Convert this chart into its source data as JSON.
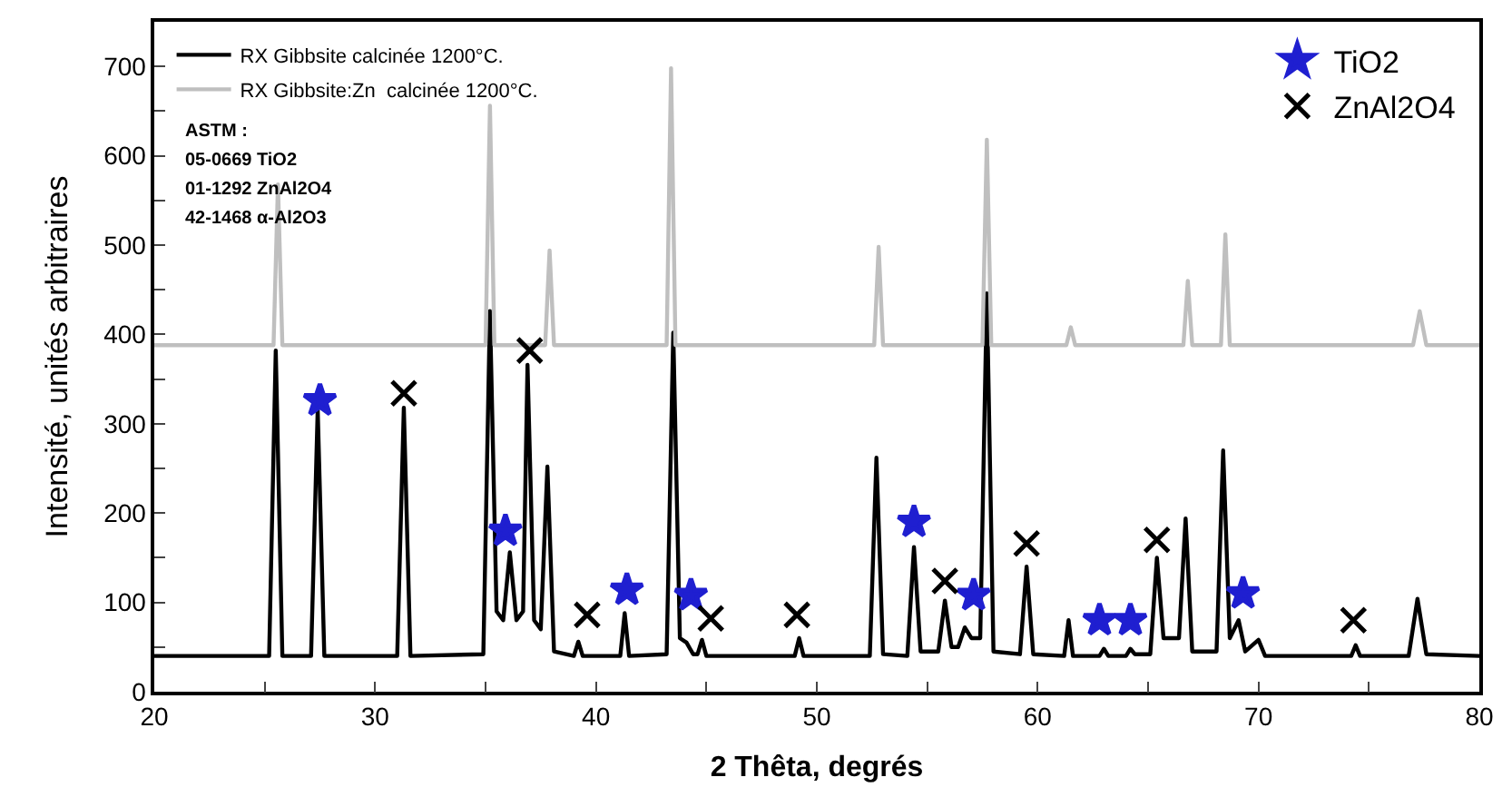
{
  "chart_data": {
    "type": "line",
    "xlabel": "2 Thêta, degrés",
    "ylabel": "Intensité, unités arbitraires",
    "xlim": [
      20,
      80
    ],
    "ylim": [
      0,
      750
    ],
    "xticks": [
      20,
      {
        "value": 25,
        "label": null
      },
      30,
      {
        "value": 35,
        "label": null
      },
      40,
      {
        "value": 45,
        "label": null
      },
      50,
      {
        "value": 55,
        "label": null
      },
      60,
      {
        "value": 65,
        "label": null
      },
      70,
      {
        "value": 75,
        "label": null
      },
      80
    ],
    "yticks": [
      0,
      {
        "value": 50,
        "label": null
      },
      100,
      {
        "value": 150,
        "label": null
      },
      200,
      {
        "value": 250,
        "label": null
      },
      300,
      {
        "value": 350,
        "label": null
      },
      400,
      {
        "value": 450,
        "label": null
      },
      500,
      {
        "value": 550,
        "label": null
      },
      600,
      {
        "value": 650,
        "label": null
      },
      700
    ],
    "legend": "top left",
    "marker": "none",
    "line_style": "solid",
    "series": [
      {
        "name": "RX Gibbsite calcinée 1200°C.",
        "color": "#000000",
        "x": [
          20,
          25.2,
          25.5,
          25.8,
          27.1,
          27.4,
          27.7,
          31.0,
          31.3,
          31.6,
          34.9,
          35.2,
          35.5,
          35.8,
          36.1,
          36.4,
          36.7,
          36.9,
          37.2,
          37.5,
          37.8,
          38.1,
          39.0,
          39.2,
          39.4,
          41.1,
          41.3,
          41.5,
          43.2,
          43.5,
          43.8,
          44.1,
          44.4,
          44.6,
          44.8,
          45.0,
          49.0,
          49.2,
          49.4,
          52.4,
          52.7,
          53.0,
          54.1,
          54.4,
          54.7,
          55.5,
          55.8,
          56.1,
          56.4,
          56.7,
          57.0,
          57.4,
          57.7,
          58.0,
          59.2,
          59.5,
          59.8,
          61.2,
          61.4,
          61.6,
          62.8,
          63.0,
          63.2,
          64.0,
          64.2,
          64.4,
          65.1,
          65.4,
          65.7,
          66.4,
          66.7,
          67.0,
          68.1,
          68.4,
          68.7,
          69.1,
          69.4,
          70.0,
          70.3,
          74.2,
          74.4,
          74.6,
          76.8,
          77.2,
          77.6,
          80
        ],
        "values": [
          40,
          40,
          382,
          40,
          40,
          316,
          40,
          40,
          318,
          40,
          42,
          426,
          90,
          80,
          156,
          80,
          90,
          366,
          80,
          70,
          252,
          45,
          40,
          56,
          40,
          40,
          88,
          40,
          42,
          402,
          60,
          55,
          42,
          42,
          58,
          40,
          40,
          60,
          40,
          40,
          262,
          42,
          40,
          162,
          45,
          45,
          102,
          50,
          50,
          72,
          60,
          60,
          446,
          45,
          42,
          140,
          42,
          40,
          80,
          40,
          40,
          48,
          40,
          40,
          48,
          42,
          42,
          150,
          60,
          60,
          194,
          45,
          45,
          270,
          60,
          80,
          45,
          58,
          40,
          40,
          52,
          40,
          40,
          104,
          42,
          40
        ]
      },
      {
        "name": "RX Gibbsite:Zn  calcinée 1200°C.",
        "color": "#bfbfbf",
        "x": [
          20,
          25.4,
          25.6,
          25.8,
          35.0,
          35.2,
          35.4,
          37.7,
          37.9,
          38.1,
          43.2,
          43.4,
          43.6,
          52.6,
          52.8,
          53.0,
          57.5,
          57.7,
          57.9,
          61.3,
          61.5,
          61.7,
          66.6,
          66.8,
          67.0,
          68.3,
          68.5,
          68.7,
          77.0,
          77.3,
          77.6,
          80
        ],
        "values": [
          388,
          388,
          568,
          388,
          388,
          656,
          388,
          388,
          494,
          388,
          388,
          698,
          388,
          388,
          498,
          388,
          388,
          618,
          388,
          388,
          408,
          388,
          388,
          460,
          388,
          388,
          512,
          388,
          388,
          426,
          388,
          388
        ]
      },
      {
        "name": "TiO2",
        "type": "scatter",
        "marker": "star",
        "color": "#1f1fd0",
        "x": [
          27.5,
          35.9,
          41.4,
          44.3,
          54.4,
          57.1,
          62.8,
          64.2,
          69.3
        ],
        "values": [
          326,
          180,
          114,
          108,
          190,
          108,
          80,
          80,
          110
        ]
      },
      {
        "name": "ZnAl2O4",
        "type": "scatter",
        "marker": "cross",
        "color": "#000000",
        "x": [
          31.3,
          37.0,
          39.6,
          45.2,
          49.1,
          55.8,
          59.5,
          65.4,
          74.3
        ],
        "values": [
          334,
          382,
          86,
          82,
          86,
          124,
          166,
          170,
          80
        ]
      }
    ],
    "annotations": [
      "ASTM :",
      "05-0669 TiO2",
      "01-1292 ZnAl2O4",
      "42-1468 α-Al2O3"
    ]
  }
}
